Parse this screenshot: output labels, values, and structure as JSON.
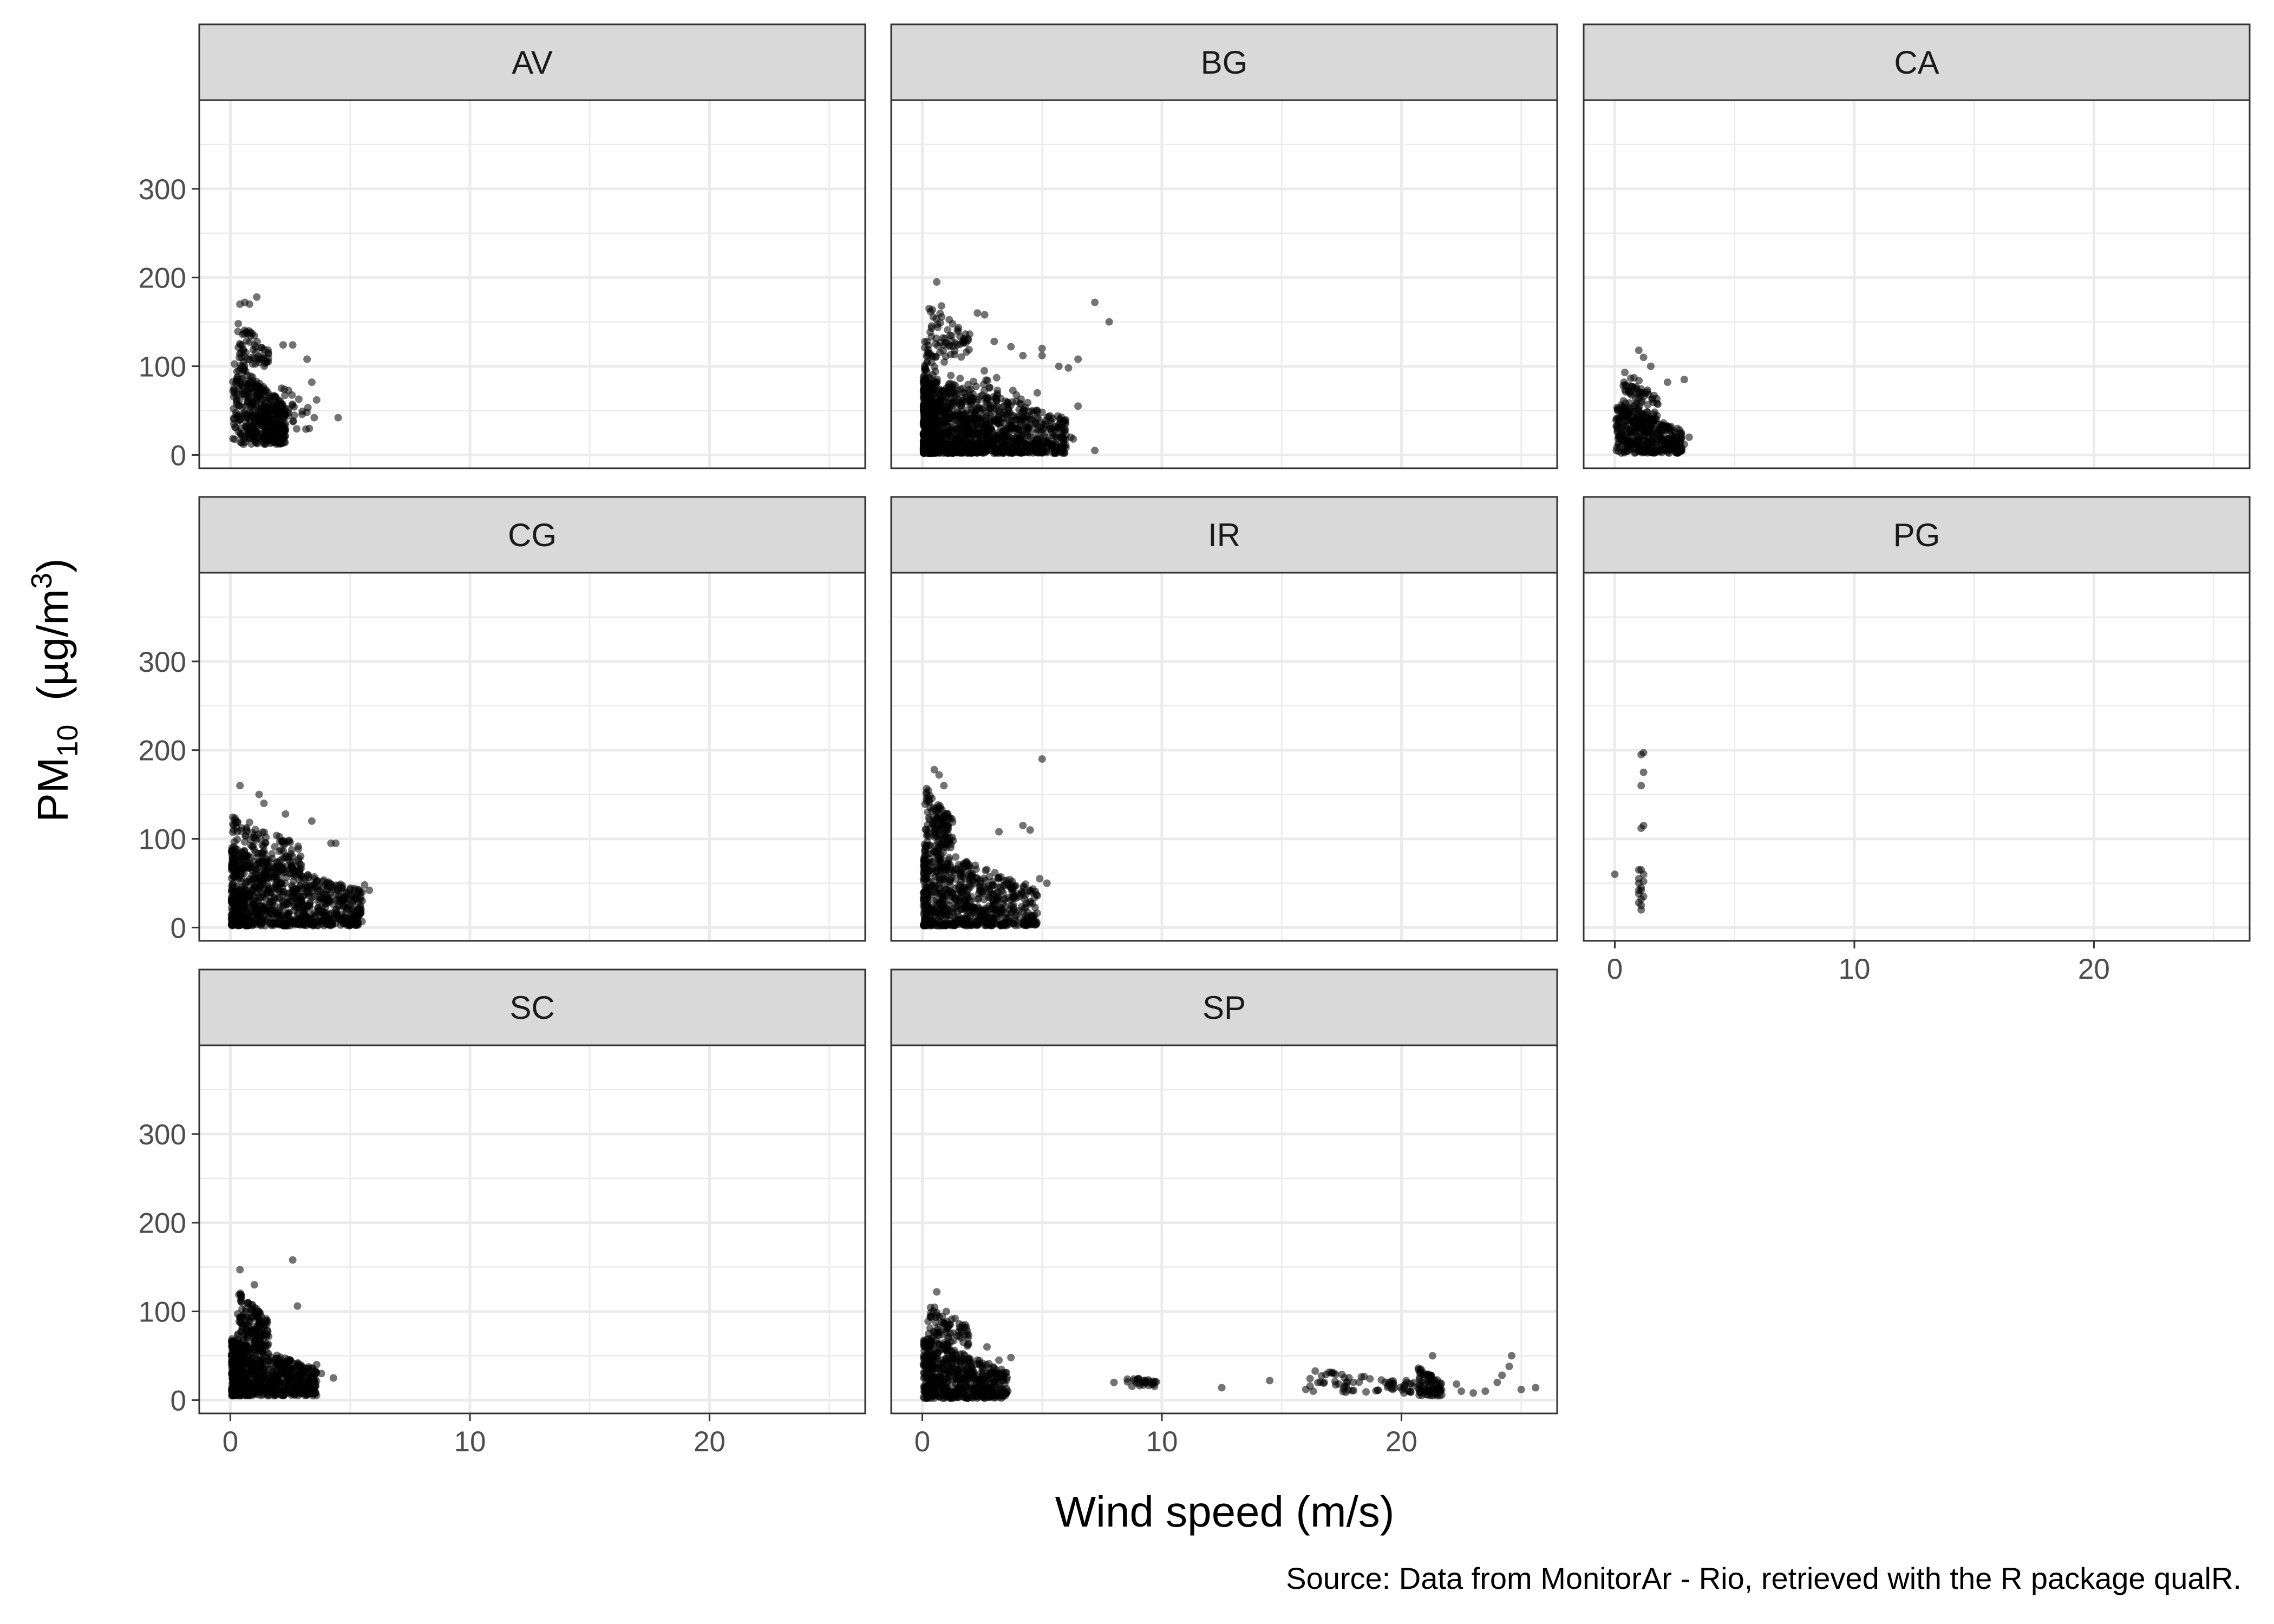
{
  "figure": {
    "xlabel": "Wind speed (m/s)",
    "ylabel_main": "PM",
    "ylabel_sub": "10",
    "ylabel_rest": "  (µg/m",
    "ylabel_sup": "3",
    "ylabel_close": ")",
    "caption": "Source: Data from MonitorAr - Rio, retrieved with the R package qualR."
  },
  "chart_data": {
    "type": "scatter",
    "facet_layout": "3x3 grid, free-standing panels, shared axes",
    "xlim": [
      -1.3,
      26.5
    ],
    "ylim": [
      -15,
      400
    ],
    "x_ticks": [
      0,
      10,
      20
    ],
    "y_ticks": [
      0,
      100,
      200,
      300
    ],
    "point_color": "#000000",
    "point_alpha": 0.55,
    "grid": true,
    "panels": [
      {
        "name": "AV",
        "col": 0,
        "row": 0,
        "clusters": [
          {
            "n": 420,
            "x": [
              0.1,
              2.3
            ],
            "y": [
              12,
              110
            ],
            "xs": 0.9,
            "yt": 1.0
          },
          {
            "n": 60,
            "x": [
              0.3,
              1.6
            ],
            "y": [
              100,
              150
            ],
            "xs": 1.0,
            "yt": 1.0
          },
          {
            "n": 25,
            "x": [
              2.0,
              3.3
            ],
            "y": [
              25,
              85
            ],
            "xs": 1.0,
            "yt": 1.0
          }
        ],
        "points": [
          [
            0.4,
            170
          ],
          [
            0.6,
            172
          ],
          [
            0.8,
            170
          ],
          [
            1.1,
            178
          ],
          [
            2.2,
            124
          ],
          [
            2.6,
            124
          ],
          [
            3.2,
            108
          ],
          [
            3.4,
            82
          ],
          [
            3.6,
            62
          ],
          [
            3.5,
            42
          ],
          [
            4.5,
            42
          ]
        ]
      },
      {
        "name": "BG",
        "col": 1,
        "row": 0,
        "clusters": [
          {
            "n": 1200,
            "x": [
              0.05,
              6.0
            ],
            "y": [
              2,
              90
            ],
            "xs": 2.0,
            "yt": 1.5
          },
          {
            "n": 260,
            "x": [
              0.1,
              4.5
            ],
            "y": [
              2,
              140
            ],
            "xs": 2.0,
            "yt": 2.0
          },
          {
            "n": 60,
            "x": [
              0.2,
              2.0
            ],
            "y": [
              110,
              170
            ],
            "xs": 1.0,
            "yt": 1.0
          }
        ],
        "points": [
          [
            0.6,
            195
          ],
          [
            0.8,
            168
          ],
          [
            2.3,
            160
          ],
          [
            2.6,
            158
          ],
          [
            3.0,
            128
          ],
          [
            3.7,
            122
          ],
          [
            4.2,
            112
          ],
          [
            5.0,
            120
          ],
          [
            5.7,
            100
          ],
          [
            6.1,
            98
          ],
          [
            6.5,
            108
          ],
          [
            7.2,
            172
          ],
          [
            7.8,
            150
          ],
          [
            6.2,
            20
          ],
          [
            6.3,
            18
          ],
          [
            7.2,
            5
          ],
          [
            6.5,
            55
          ],
          [
            5.0,
            112
          ],
          [
            4.8,
            70
          ]
        ]
      },
      {
        "name": "CA",
        "col": 2,
        "row": 0,
        "clusters": [
          {
            "n": 380,
            "x": [
              0.05,
              2.8
            ],
            "y": [
              2,
              60
            ],
            "xs": 1.0,
            "yt": 1.4
          },
          {
            "n": 70,
            "x": [
              0.3,
              1.8
            ],
            "y": [
              40,
              100
            ],
            "xs": 1.0,
            "yt": 1.0
          }
        ],
        "points": [
          [
            1.0,
            118
          ],
          [
            1.2,
            110
          ],
          [
            1.5,
            100
          ],
          [
            2.2,
            82
          ],
          [
            2.9,
            85
          ],
          [
            3.1,
            20
          ],
          [
            2.9,
            12
          ]
        ]
      },
      {
        "name": "CG",
        "col": 0,
        "row": 1,
        "clusters": [
          {
            "n": 900,
            "x": [
              0.05,
              5.5
            ],
            "y": [
              2,
              90
            ],
            "xs": 1.6,
            "yt": 1.5
          },
          {
            "n": 150,
            "x": [
              0.1,
              3.0
            ],
            "y": [
              60,
              130
            ],
            "xs": 1.5,
            "yt": 1.0
          }
        ],
        "points": [
          [
            0.4,
            160
          ],
          [
            1.2,
            150
          ],
          [
            1.4,
            140
          ],
          [
            2.3,
            128
          ],
          [
            3.4,
            120
          ],
          [
            4.2,
            95
          ],
          [
            4.4,
            95
          ],
          [
            5.6,
            48
          ],
          [
            5.8,
            42
          ],
          [
            5.5,
            30
          ],
          [
            5.3,
            20
          ]
        ]
      },
      {
        "name": "IR",
        "col": 1,
        "row": 1,
        "clusters": [
          {
            "n": 700,
            "x": [
              0.05,
              4.8
            ],
            "y": [
              2,
              95
            ],
            "xs": 1.7,
            "yt": 1.5
          },
          {
            "n": 120,
            "x": [
              0.1,
              1.3
            ],
            "y": [
              90,
              160
            ],
            "xs": 1.0,
            "yt": 1.0
          }
        ],
        "points": [
          [
            0.5,
            178
          ],
          [
            0.7,
            172
          ],
          [
            0.9,
            160
          ],
          [
            3.2,
            108
          ],
          [
            4.2,
            115
          ],
          [
            4.5,
            110
          ],
          [
            4.9,
            55
          ],
          [
            5.2,
            50
          ],
          [
            5.0,
            190
          ]
        ]
      },
      {
        "name": "PG",
        "col": 2,
        "row": 1,
        "clusters": [],
        "points": [
          [
            0.0,
            60
          ],
          [
            1.0,
            55
          ],
          [
            1.0,
            50
          ],
          [
            1.1,
            45
          ],
          [
            1.0,
            38
          ],
          [
            1.1,
            32
          ],
          [
            1.0,
            28
          ],
          [
            1.1,
            25
          ],
          [
            1.1,
            20
          ],
          [
            1.0,
            65
          ],
          [
            1.2,
            60
          ],
          [
            1.1,
            42
          ],
          [
            1.2,
            35
          ],
          [
            1.0,
            42
          ],
          [
            1.1,
            112
          ],
          [
            1.2,
            115
          ],
          [
            1.1,
            160
          ],
          [
            1.2,
            175
          ],
          [
            1.1,
            195
          ],
          [
            1.2,
            197
          ],
          [
            1.1,
            65
          ],
          [
            1.2,
            52
          ]
        ]
      },
      {
        "name": "SC",
        "col": 0,
        "row": 2,
        "clusters": [
          {
            "n": 750,
            "x": [
              0.05,
              3.6
            ],
            "y": [
              5,
              70
            ],
            "xs": 1.5,
            "yt": 1.3
          },
          {
            "n": 150,
            "x": [
              0.3,
              1.6
            ],
            "y": [
              60,
              125
            ],
            "xs": 1.0,
            "yt": 1.0
          }
        ],
        "points": [
          [
            0.4,
            147
          ],
          [
            1.0,
            130
          ],
          [
            2.6,
            158
          ],
          [
            2.8,
            106
          ],
          [
            3.6,
            40
          ],
          [
            3.8,
            30
          ],
          [
            4.3,
            25
          ],
          [
            3.5,
            20
          ]
        ]
      },
      {
        "name": "SP",
        "col": 1,
        "row": 2,
        "clusters": [
          {
            "n": 520,
            "x": [
              0.05,
              3.6
            ],
            "y": [
              2,
              70
            ],
            "xs": 1.4,
            "yt": 1.3
          },
          {
            "n": 80,
            "x": [
              0.2,
              2.0
            ],
            "y": [
              60,
              110
            ],
            "xs": 1.0,
            "yt": 1.0
          },
          {
            "n": 28,
            "x": [
              8.5,
              9.8
            ],
            "y": [
              15,
              28
            ],
            "xs": 1.0,
            "yt": 1.0
          },
          {
            "n": 70,
            "x": [
              16.0,
              20.8
            ],
            "y": [
              8,
              35
            ],
            "xs": 1.0,
            "yt": 1.0
          },
          {
            "n": 80,
            "x": [
              20.7,
              21.7
            ],
            "y": [
              5,
              38
            ],
            "xs": 1.0,
            "yt": 1.0
          }
        ],
        "points": [
          [
            0.6,
            122
          ],
          [
            1.0,
            100
          ],
          [
            2.7,
            60
          ],
          [
            3.2,
            45
          ],
          [
            3.7,
            48
          ],
          [
            8.0,
            20
          ],
          [
            12.5,
            14
          ],
          [
            14.5,
            22
          ],
          [
            22.3,
            18
          ],
          [
            22.5,
            10
          ],
          [
            23.0,
            8
          ],
          [
            23.5,
            10
          ],
          [
            24.0,
            20
          ],
          [
            24.2,
            28
          ],
          [
            24.5,
            38
          ],
          [
            24.6,
            50
          ],
          [
            25.0,
            12
          ],
          [
            25.6,
            14
          ],
          [
            21.3,
            50
          ],
          [
            20.2,
            22
          ]
        ]
      }
    ]
  }
}
